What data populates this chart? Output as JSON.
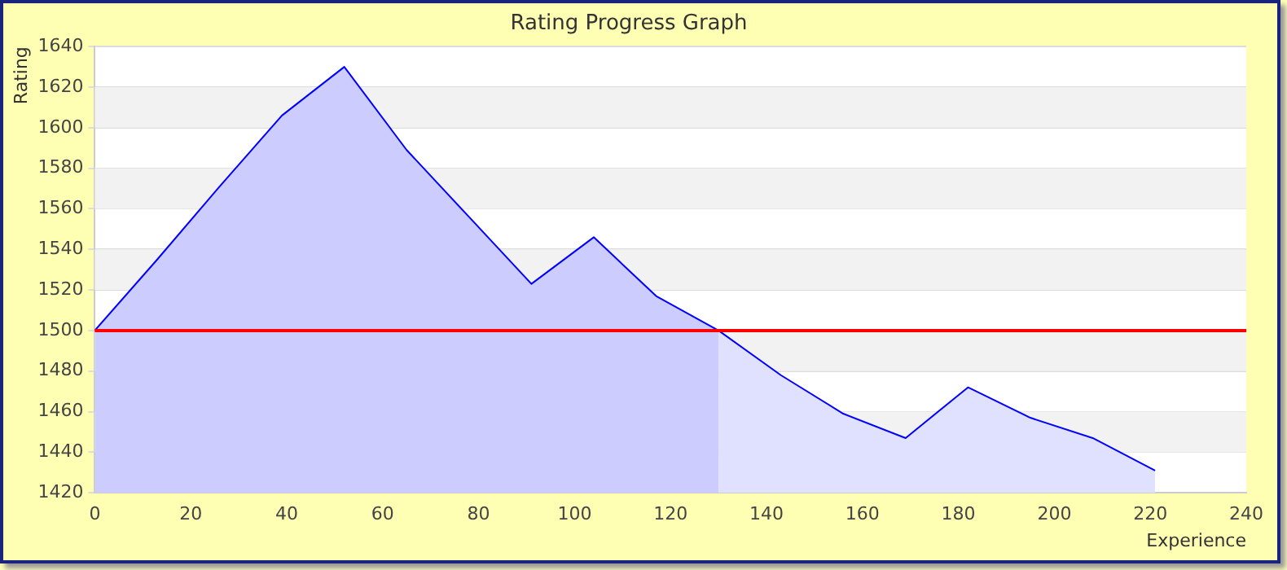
{
  "chart_data": {
    "type": "area",
    "title": "Rating Progress Graph",
    "xlabel": "Experience",
    "ylabel": "Rating",
    "series": [
      {
        "type": "line",
        "color": "#0000ff",
        "x": [
          0,
          13,
          26,
          39,
          52,
          65,
          78,
          91,
          104,
          117,
          130,
          143,
          156,
          169,
          182,
          195,
          208,
          221
        ],
        "values": [
          1500,
          1535,
          1571,
          1606,
          1630,
          1589,
          1556,
          1523,
          1546,
          1517,
          1500,
          1478,
          1459,
          1447,
          1472,
          1457,
          1447,
          1431
        ]
      },
      {
        "color": "#ccccff",
        "x": [
          0,
          13,
          26,
          39,
          52,
          65,
          78,
          91,
          104,
          117,
          130
        ],
        "values": [
          1500,
          1535,
          1571,
          1606,
          1630,
          1589,
          1556,
          1523,
          1546,
          1517,
          1500
        ]
      },
      {
        "color": "#e0e0ff",
        "x": [
          130,
          143,
          156,
          169,
          182,
          195,
          208,
          221
        ],
        "values": [
          1500,
          1478,
          1459,
          1447,
          1472,
          1457,
          1447,
          1431
        ]
      }
    ],
    "xlim": [
      0,
      240
    ],
    "xticks": [
      0,
      20,
      40,
      60,
      80,
      100,
      120,
      140,
      160,
      180,
      200,
      220,
      240
    ],
    "ylim": [
      1420,
      1640
    ],
    "yticks": [
      1420,
      1440,
      1460,
      1480,
      1500,
      1520,
      1540,
      1560,
      1580,
      1600,
      1620,
      1640
    ],
    "ref_lines": [
      {
        "axis": "y",
        "value": 1500,
        "color": "#ff0000"
      }
    ],
    "grid": "y",
    "legend": false,
    "marker": "none",
    "line_style": "solid"
  }
}
